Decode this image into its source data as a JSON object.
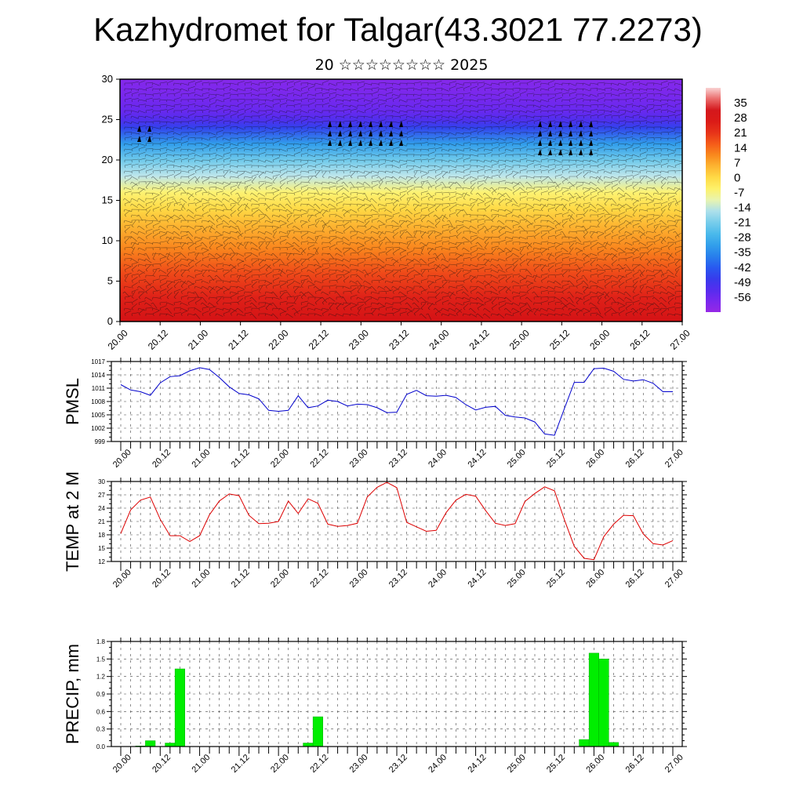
{
  "title": "Kazhydromet for Talgar(43.3021 77.2273)",
  "subtitle": "20 ☆☆☆☆☆☆☆☆ 2025",
  "time_ticks": [
    "20.00",
    "20.12",
    "21.00",
    "21.12",
    "22.00",
    "22.12",
    "23.00",
    "23.12",
    "24.00",
    "24.12",
    "25.00",
    "25.12",
    "26.00",
    "26.12",
    "27.00"
  ],
  "colors": {
    "pmsl_line": "#0000cc",
    "temp_line": "#dd0000",
    "precip_bar": "#00ee00",
    "precip_bar_edge": "#00aa00"
  },
  "chart_data": [
    {
      "type": "heatmap",
      "title": "",
      "xlabel": "",
      "ylabel": "",
      "ylim": [
        0,
        30
      ],
      "yticks": [
        "0",
        "5",
        "10",
        "15",
        "20",
        "25",
        "30"
      ],
      "colorbar": {
        "labels": [
          "35",
          "28",
          "21",
          "14",
          "7",
          "0",
          "-7",
          "-14",
          "-21",
          "-28",
          "-35",
          "-42",
          "-49",
          "-56"
        ],
        "range": [
          -63,
          42
        ],
        "palette": "purple-blue-cyan-yellow-orange-red"
      },
      "temperature_profile": {
        "heights": [
          0,
          3,
          6,
          9,
          12,
          14,
          16,
          18,
          20,
          22,
          24,
          25,
          26,
          28,
          30
        ],
        "values": [
          30,
          24,
          18,
          11,
          5,
          0,
          -6,
          -14,
          -22,
          -32,
          -46,
          -52,
          -55,
          -58,
          -60
        ]
      },
      "overlay": "wind barbs"
    },
    {
      "type": "line",
      "ylabel": "PMSL",
      "ylim": [
        999,
        1017
      ],
      "yticks": [
        "999",
        "1002",
        "1005",
        "1008",
        "1011",
        "1014",
        "1017"
      ],
      "series": [
        {
          "values": [
            1011.8,
            1010.6,
            1010.2,
            1009.4,
            1012.2,
            1013.6,
            1013.8,
            1014.9,
            1015.6,
            1015.2,
            1013.4,
            1011.3,
            1009.8,
            1009.5,
            1008.6,
            1006.0,
            1005.8,
            1006.0,
            1009.3,
            1006.6,
            1007.0,
            1008.3,
            1008.0,
            1007.0,
            1007.4,
            1007.3,
            1006.6,
            1005.5,
            1005.6,
            1009.6,
            1010.5,
            1009.3,
            1009.2,
            1009.4,
            1008.9,
            1007.3,
            1006.1,
            1006.7,
            1006.9,
            1004.9,
            1004.5,
            1004.3,
            1003.4,
            1000.7,
            1000.4,
            1006.4,
            1012.3,
            1012.3,
            1015.4,
            1015.5,
            1014.8,
            1013.0,
            1012.6,
            1012.9,
            1012.1,
            1010.2,
            1010.2
          ]
        }
      ]
    },
    {
      "type": "line",
      "ylabel": "TEMP at 2 M",
      "ylim": [
        12,
        30
      ],
      "yticks": [
        "12",
        "15",
        "18",
        "21",
        "24",
        "27",
        "30"
      ],
      "series": [
        {
          "values": [
            18.3,
            23.6,
            25.8,
            26.5,
            21.5,
            17.8,
            17.8,
            16.5,
            17.8,
            22.5,
            25.6,
            27.2,
            26.8,
            22.4,
            20.5,
            20.6,
            21.0,
            25.6,
            22.8,
            26.1,
            25.1,
            20.4,
            19.9,
            20.1,
            20.6,
            26.5,
            28.7,
            29.8,
            28.6,
            20.8,
            19.8,
            18.8,
            19.0,
            23.0,
            25.8,
            27.1,
            26.7,
            23.5,
            20.6,
            20.1,
            20.5,
            25.5,
            27.3,
            28.8,
            27.9,
            21.4,
            15.4,
            12.7,
            12.4,
            17.6,
            20.4,
            22.4,
            22.3,
            18.2,
            16.0,
            15.7,
            16.7
          ]
        }
      ]
    },
    {
      "type": "bar",
      "ylabel": "PRECIP, mm",
      "ylim": [
        0,
        1.8
      ],
      "yticks": [
        "0.0",
        "0.3",
        "0.6",
        "0.9",
        "1.2",
        "1.5",
        "1.8"
      ],
      "series": [
        {
          "values": [
            0,
            0,
            0.01,
            0.1,
            0,
            0.06,
            1.33,
            0,
            0,
            0,
            0,
            0,
            0,
            0,
            0,
            0,
            0,
            0,
            0,
            0.06,
            0.51,
            0,
            0,
            0,
            0,
            0,
            0,
            0,
            0,
            0,
            0,
            0,
            0,
            0,
            0,
            0,
            0,
            0,
            0,
            0,
            0,
            0,
            0,
            0,
            0,
            0,
            0,
            0.12,
            1.6,
            1.5,
            0.07,
            0,
            0,
            0,
            0,
            0,
            0
          ]
        }
      ]
    }
  ]
}
